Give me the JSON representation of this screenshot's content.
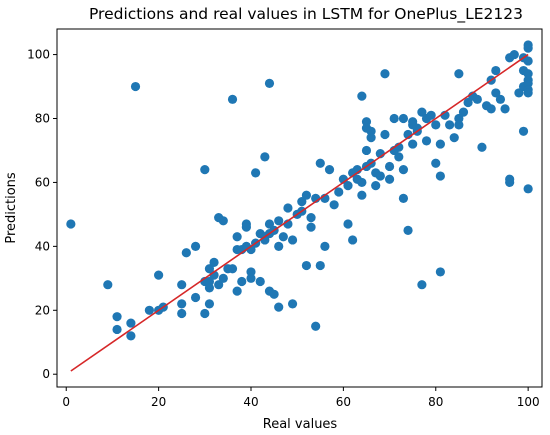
{
  "chart_data": {
    "type": "scatter",
    "title": "Predictions and real values in LSTM for OnePlus_LE2123",
    "xlabel": "Real values",
    "ylabel": "Predictions",
    "xlim": [
      -2,
      103
    ],
    "ylim": [
      -4,
      108
    ],
    "xticks": [
      0,
      20,
      40,
      60,
      80,
      100
    ],
    "yticks": [
      0,
      20,
      40,
      60,
      80,
      100
    ],
    "grid": false,
    "legend": "none",
    "colors": {
      "points": "#1f77b4",
      "fit_line": "#d62728",
      "background_band": "#00ffff",
      "band_low": "#ff00ff"
    },
    "fit_line": {
      "x": [
        1,
        100
      ],
      "y": [
        1,
        100
      ]
    },
    "points": [
      [
        1,
        47
      ],
      [
        9,
        28
      ],
      [
        11,
        18
      ],
      [
        11,
        14
      ],
      [
        14,
        16
      ],
      [
        14,
        12
      ],
      [
        15,
        90
      ],
      [
        18,
        20
      ],
      [
        20,
        20
      ],
      [
        20,
        31
      ],
      [
        21,
        21
      ],
      [
        25,
        22
      ],
      [
        25,
        19
      ],
      [
        25,
        28
      ],
      [
        26,
        38
      ],
      [
        28,
        24
      ],
      [
        28,
        40
      ],
      [
        30,
        64
      ],
      [
        30,
        19
      ],
      [
        30,
        29
      ],
      [
        31,
        22
      ],
      [
        31,
        29
      ],
      [
        31,
        33
      ],
      [
        31,
        27
      ],
      [
        32,
        35
      ],
      [
        32,
        31
      ],
      [
        33,
        28
      ],
      [
        33,
        49
      ],
      [
        34,
        48
      ],
      [
        34,
        30
      ],
      [
        35,
        33
      ],
      [
        36,
        33
      ],
      [
        36,
        86
      ],
      [
        37,
        26
      ],
      [
        37,
        39
      ],
      [
        37,
        43
      ],
      [
        38,
        29
      ],
      [
        38,
        39
      ],
      [
        39,
        47
      ],
      [
        39,
        46
      ],
      [
        39,
        40
      ],
      [
        40,
        32
      ],
      [
        40,
        39
      ],
      [
        40,
        30
      ],
      [
        41,
        41
      ],
      [
        41,
        63
      ],
      [
        42,
        29
      ],
      [
        42,
        44
      ],
      [
        43,
        43
      ],
      [
        43,
        42
      ],
      [
        43,
        68
      ],
      [
        44,
        91
      ],
      [
        44,
        26
      ],
      [
        44,
        47
      ],
      [
        44,
        44
      ],
      [
        45,
        25
      ],
      [
        45,
        45
      ],
      [
        46,
        48
      ],
      [
        46,
        21
      ],
      [
        46,
        40
      ],
      [
        47,
        43
      ],
      [
        48,
        47
      ],
      [
        48,
        52
      ],
      [
        49,
        22
      ],
      [
        49,
        42
      ],
      [
        50,
        50
      ],
      [
        51,
        51
      ],
      [
        51,
        54
      ],
      [
        52,
        34
      ],
      [
        52,
        56
      ],
      [
        53,
        49
      ],
      [
        53,
        46
      ],
      [
        54,
        15
      ],
      [
        54,
        55
      ],
      [
        55,
        34
      ],
      [
        55,
        66
      ],
      [
        56,
        40
      ],
      [
        56,
        55
      ],
      [
        57,
        64
      ],
      [
        58,
        53
      ],
      [
        59,
        57
      ],
      [
        60,
        61
      ],
      [
        61,
        47
      ],
      [
        61,
        59
      ],
      [
        62,
        42
      ],
      [
        62,
        63
      ],
      [
        63,
        64
      ],
      [
        63,
        61
      ],
      [
        64,
        87
      ],
      [
        64,
        60
      ],
      [
        64,
        56
      ],
      [
        65,
        65
      ],
      [
        65,
        70
      ],
      [
        65,
        79
      ],
      [
        65,
        77
      ],
      [
        66,
        76
      ],
      [
        66,
        74
      ],
      [
        66,
        66
      ],
      [
        67,
        63
      ],
      [
        67,
        59
      ],
      [
        68,
        62
      ],
      [
        68,
        69
      ],
      [
        69,
        94
      ],
      [
        69,
        75
      ],
      [
        70,
        61
      ],
      [
        70,
        65
      ],
      [
        71,
        70
      ],
      [
        71,
        80
      ],
      [
        72,
        68
      ],
      [
        72,
        71
      ],
      [
        73,
        80
      ],
      [
        73,
        64
      ],
      [
        73,
        55
      ],
      [
        74,
        75
      ],
      [
        74,
        45
      ],
      [
        75,
        78
      ],
      [
        75,
        79
      ],
      [
        75,
        72
      ],
      [
        76,
        76
      ],
      [
        76,
        77
      ],
      [
        77,
        28
      ],
      [
        77,
        82
      ],
      [
        78,
        80
      ],
      [
        78,
        73
      ],
      [
        79,
        81
      ],
      [
        80,
        66
      ],
      [
        80,
        78
      ],
      [
        81,
        62
      ],
      [
        81,
        32
      ],
      [
        81,
        72
      ],
      [
        82,
        81
      ],
      [
        83,
        78
      ],
      [
        84,
        74
      ],
      [
        85,
        78
      ],
      [
        85,
        80
      ],
      [
        85,
        94
      ],
      [
        86,
        82
      ],
      [
        87,
        85
      ],
      [
        88,
        87
      ],
      [
        89,
        86
      ],
      [
        90,
        71
      ],
      [
        91,
        84
      ],
      [
        92,
        83
      ],
      [
        92,
        92
      ],
      [
        93,
        88
      ],
      [
        93,
        95
      ],
      [
        94,
        86
      ],
      [
        95,
        83
      ],
      [
        96,
        99
      ],
      [
        96,
        60
      ],
      [
        96,
        61
      ],
      [
        97,
        100
      ],
      [
        98,
        88
      ],
      [
        99,
        76
      ],
      [
        99,
        90
      ],
      [
        99,
        99
      ],
      [
        99,
        95
      ],
      [
        100,
        103
      ],
      [
        100,
        102
      ],
      [
        100,
        98
      ],
      [
        100,
        94
      ],
      [
        100,
        92
      ],
      [
        100,
        91
      ],
      [
        100,
        89
      ],
      [
        100,
        88
      ],
      [
        100,
        58
      ]
    ]
  }
}
